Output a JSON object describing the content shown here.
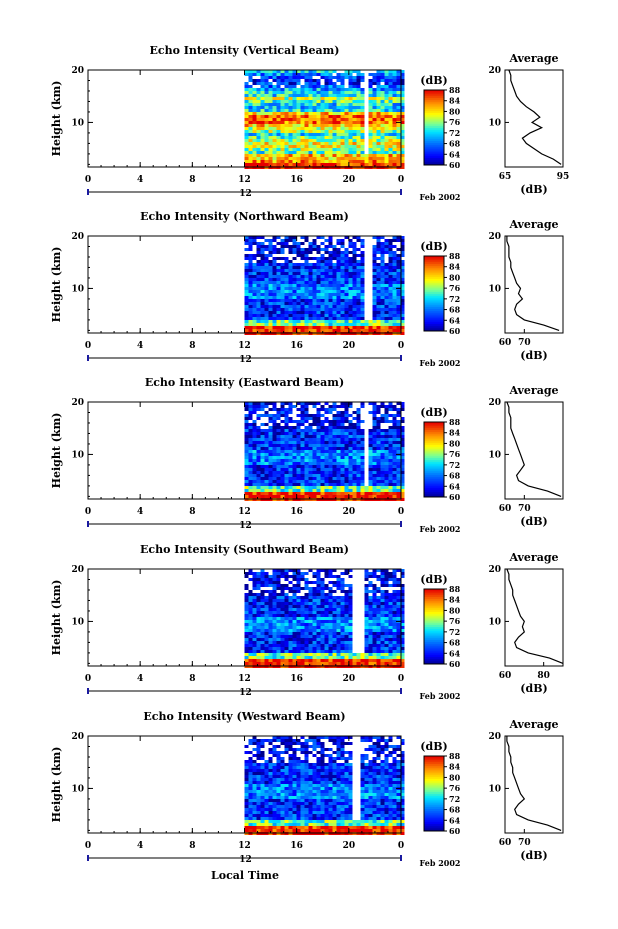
{
  "figure": {
    "xlabel": "Local Time",
    "ylabel": "Height (km)",
    "colorbar_unit": "(dB)",
    "profile_title": "Average",
    "profile_xlabel": "(dB)",
    "date_label": "Feb 2002"
  },
  "chart_data": [
    {
      "type": "heatmap",
      "title": "Echo Intensity (Vertical Beam)",
      "beam": "vertical",
      "xlabel": "Local Time",
      "ylabel": "Height (km)",
      "x_ticks": [
        "0",
        "4",
        "8",
        "12",
        "16",
        "20",
        "0"
      ],
      "x_day_label": "12",
      "y_ticks": [
        "10",
        "20"
      ],
      "ylim": [
        1.5,
        20
      ],
      "data_start_hour": 12,
      "gap_hours": [
        21,
        21.4
      ],
      "colorbar": {
        "label": "(dB)",
        "ticks": [
          "60",
          "64",
          "68",
          "72",
          "76",
          "80",
          "84",
          "88"
        ],
        "range": [
          60,
          88
        ]
      },
      "profile": {
        "title": "Average",
        "xlabel": "(dB)",
        "xlim": [
          65,
          95
        ],
        "xticks": [
          "65",
          "95"
        ],
        "height_km": [
          20,
          19,
          18,
          17,
          16,
          15,
          14,
          13,
          12,
          11,
          10,
          9,
          8,
          7,
          6,
          5,
          4,
          3,
          2
        ],
        "values_db": [
          67,
          68,
          68,
          69,
          70,
          71,
          73,
          76,
          80,
          83,
          79,
          84,
          78,
          74,
          76,
          80,
          84,
          90,
          94
        ]
      }
    },
    {
      "type": "heatmap",
      "title": "Echo Intensity (Northward Beam)",
      "beam": "northward",
      "xlabel": "Local Time",
      "ylabel": "Height (km)",
      "x_ticks": [
        "0",
        "4",
        "8",
        "12",
        "16",
        "20",
        "0"
      ],
      "x_day_label": "12",
      "y_ticks": [
        "10",
        "20"
      ],
      "ylim": [
        1.5,
        20
      ],
      "data_start_hour": 12,
      "gap_hours": [
        21,
        21.6
      ],
      "colorbar": {
        "label": "(dB)",
        "ticks": [
          "60",
          "64",
          "68",
          "72",
          "76",
          "80",
          "84",
          "88"
        ],
        "range": [
          60,
          88
        ]
      },
      "profile": {
        "title": "Average",
        "xlabel": "(dB)",
        "xlim": [
          60,
          90
        ],
        "xticks": [
          "60",
          "70"
        ],
        "height_km": [
          20,
          19,
          18,
          17,
          16,
          15,
          14,
          13,
          12,
          11,
          10,
          9,
          8,
          7,
          6,
          5,
          4,
          3,
          2
        ],
        "values_db": [
          61,
          61,
          62,
          62,
          62,
          63,
          63,
          64,
          65,
          66,
          68,
          67,
          69,
          66,
          65,
          66,
          70,
          80,
          88
        ]
      }
    },
    {
      "type": "heatmap",
      "title": "Echo Intensity (Eastward Beam)",
      "beam": "eastward",
      "xlabel": "Local Time",
      "ylabel": "Height (km)",
      "x_ticks": [
        "0",
        "4",
        "8",
        "12",
        "16",
        "20",
        "0"
      ],
      "x_day_label": "12",
      "y_ticks": [
        "10",
        "20"
      ],
      "ylim": [
        1.5,
        20
      ],
      "data_start_hour": 12,
      "gap_hours": [
        21,
        21.5
      ],
      "colorbar": {
        "label": "(dB)",
        "ticks": [
          "60",
          "64",
          "68",
          "72",
          "76",
          "80",
          "84",
          "88"
        ],
        "range": [
          60,
          88
        ]
      },
      "profile": {
        "title": "Average",
        "xlabel": "(dB)",
        "xlim": [
          60,
          90
        ],
        "xticks": [
          "60",
          "70"
        ],
        "height_km": [
          20,
          19,
          18,
          17,
          16,
          15,
          14,
          13,
          12,
          11,
          10,
          9,
          8,
          7,
          6,
          5,
          4,
          3,
          2
        ],
        "values_db": [
          61,
          62,
          62,
          63,
          63,
          63,
          64,
          65,
          66,
          67,
          68,
          69,
          70,
          68,
          66,
          67,
          72,
          82,
          89
        ]
      }
    },
    {
      "type": "heatmap",
      "title": "Echo Intensity (Southward Beam)",
      "beam": "southward",
      "xlabel": "Local Time",
      "ylabel": "Height (km)",
      "x_ticks": [
        "0",
        "4",
        "8",
        "12",
        "16",
        "20",
        "0"
      ],
      "x_day_label": "12",
      "y_ticks": [
        "10",
        "20"
      ],
      "ylim": [
        1.5,
        20
      ],
      "data_start_hour": 12,
      "gap_hours": [
        20,
        21
      ],
      "colorbar": {
        "label": "(dB)",
        "ticks": [
          "60",
          "64",
          "68",
          "72",
          "76",
          "80",
          "84",
          "88"
        ],
        "range": [
          60,
          88
        ]
      },
      "profile": {
        "title": "Average",
        "xlabel": "(dB)",
        "xlim": [
          60,
          90
        ],
        "xticks": [
          "60",
          "80"
        ],
        "height_km": [
          20,
          19,
          18,
          17,
          16,
          15,
          14,
          13,
          12,
          11,
          10,
          9,
          8,
          7,
          6,
          5,
          4,
          3,
          2
        ],
        "values_db": [
          61,
          62,
          62,
          63,
          64,
          64,
          65,
          66,
          67,
          68,
          70,
          69,
          70,
          67,
          65,
          66,
          72,
          83,
          90
        ]
      }
    },
    {
      "type": "heatmap",
      "title": "Echo Intensity (Westward Beam)",
      "beam": "westward",
      "xlabel": "Local Time",
      "ylabel": "Height (km)",
      "x_ticks": [
        "0",
        "4",
        "8",
        "12",
        "16",
        "20",
        "0"
      ],
      "x_day_label": "12",
      "y_ticks": [
        "10",
        "20"
      ],
      "ylim": [
        1.5,
        20
      ],
      "data_start_hour": 12,
      "gap_hours": [
        20,
        20.8
      ],
      "colorbar": {
        "label": "(dB)",
        "ticks": [
          "60",
          "64",
          "68",
          "72",
          "76",
          "80",
          "84",
          "88"
        ],
        "range": [
          60,
          88
        ]
      },
      "profile": {
        "title": "Average",
        "xlabel": "(dB)",
        "xlim": [
          60,
          90
        ],
        "xticks": [
          "60",
          "70"
        ],
        "height_km": [
          20,
          19,
          18,
          17,
          16,
          15,
          14,
          13,
          12,
          11,
          10,
          9,
          8,
          7,
          6,
          5,
          4,
          3,
          2
        ],
        "values_db": [
          61,
          61,
          62,
          62,
          63,
          63,
          64,
          64,
          65,
          66,
          67,
          68,
          70,
          67,
          65,
          66,
          72,
          82,
          89
        ]
      }
    }
  ]
}
